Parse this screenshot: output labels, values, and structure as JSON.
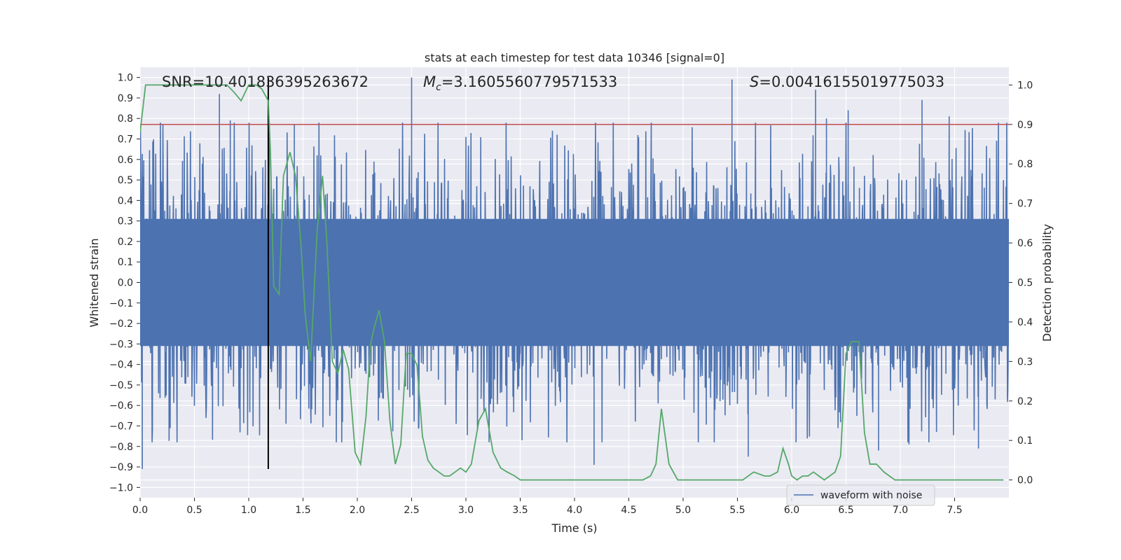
{
  "chart_data": {
    "type": "line",
    "title": "stats at each timestep for test data 10346 [signal=0]",
    "xlabel": "Time (s)",
    "ylabel_left": "Whitened strain",
    "ylabel_right": "Detection probability",
    "xlim": [
      0.0,
      8.0
    ],
    "ylim_left": [
      -1.05,
      1.05
    ],
    "ylim_right": [
      -0.045,
      1.045
    ],
    "x_ticks": [
      "0.0",
      "0.5",
      "1.0",
      "1.5",
      "2.0",
      "2.5",
      "3.0",
      "3.5",
      "4.0",
      "4.5",
      "5.0",
      "5.5",
      "6.0",
      "6.5",
      "7.0",
      "7.5"
    ],
    "y_left_ticks": [
      "-1.0",
      "-0.9",
      "-0.8",
      "-0.7",
      "-0.6",
      "-0.5",
      "-0.4",
      "-0.3",
      "-0.2",
      "-0.1",
      "0.0",
      "0.1",
      "0.2",
      "0.3",
      "0.4",
      "0.5",
      "0.6",
      "0.7",
      "0.8",
      "0.9",
      "1.0"
    ],
    "y_right_ticks": [
      "0.0",
      "0.1",
      "0.2",
      "0.3",
      "0.4",
      "0.5",
      "0.6",
      "0.7",
      "0.8",
      "0.9",
      "1.0"
    ],
    "annotations": {
      "snr": "SNR=10.401836395263672",
      "mc_symbol": "M",
      "mc_subscript": "c",
      "mc_value": "=3.1605560779571533",
      "s_symbol": "S",
      "s_value": "=0.00416155019775033"
    },
    "threshold_line": {
      "y": 0.9,
      "axis": "right",
      "color": "#c44e52"
    },
    "marker_line": {
      "x": 1.18,
      "color": "#000000",
      "y_range": [
        -0.91,
        1.0
      ]
    },
    "legend": {
      "position": "lower-right",
      "entries": [
        "waveform with noise"
      ]
    },
    "grid": true,
    "colors": {
      "background": "#eaeaf2",
      "grid": "#ffffff",
      "waveform": "#4c72b0",
      "probability": "#55a868"
    },
    "series": [
      {
        "name": "waveform with noise",
        "axis": "left",
        "description_values": "Whitened strain noise sampled densely over 0–8 s; typical envelope about ±0.5 with spikes near 1.0 at t≈2.5 s and t≈5.45 s and dips near -0.91 at t≈0.02 s.",
        "envelope": {
          "typical_high": 0.5,
          "typical_low": -0.5
        },
        "spikes": [
          {
            "x": 0.02,
            "y": -0.91
          },
          {
            "x": 0.73,
            "y": 0.92
          },
          {
            "x": 0.83,
            "y": 0.79
          },
          {
            "x": 1.19,
            "y": 0.78
          },
          {
            "x": 1.42,
            "y": 0.77
          },
          {
            "x": 2.5,
            "y": 1.0
          },
          {
            "x": 3.0,
            "y": 0.71
          },
          {
            "x": 4.18,
            "y": -0.89
          },
          {
            "x": 5.45,
            "y": 0.99
          },
          {
            "x": 5.6,
            "y": -0.85
          },
          {
            "x": 6.22,
            "y": 0.94
          },
          {
            "x": 6.32,
            "y": 0.8
          },
          {
            "x": 6.52,
            "y": 0.84
          },
          {
            "x": 6.8,
            "y": -0.82
          },
          {
            "x": 7.08,
            "y": -0.79
          },
          {
            "x": 7.2,
            "y": 0.89
          },
          {
            "x": 7.45,
            "y": 0.81
          },
          {
            "x": 7.72,
            "y": -0.81
          }
        ]
      },
      {
        "name": "",
        "axis": "right",
        "x": [
          0.0,
          0.05,
          0.1,
          0.2,
          0.3,
          0.4,
          0.5,
          0.6,
          0.7,
          0.8,
          0.87,
          0.93,
          1.0,
          1.07,
          1.12,
          1.18,
          1.2,
          1.23,
          1.28,
          1.32,
          1.38,
          1.43,
          1.48,
          1.52,
          1.57,
          1.63,
          1.68,
          1.72,
          1.77,
          1.82,
          1.87,
          1.92,
          1.98,
          2.03,
          2.08,
          2.12,
          2.15,
          2.2,
          2.25,
          2.3,
          2.35,
          2.4,
          2.45,
          2.5,
          2.55,
          2.6,
          2.65,
          2.7,
          2.75,
          2.8,
          2.85,
          2.9,
          2.95,
          3.0,
          3.05,
          3.12,
          3.18,
          3.25,
          3.32,
          3.38,
          3.45,
          3.5,
          3.6,
          3.8,
          4.0,
          4.2,
          4.4,
          4.55,
          4.63,
          4.7,
          4.75,
          4.8,
          4.87,
          4.95,
          5.0,
          5.2,
          5.4,
          5.55,
          5.65,
          5.75,
          5.8,
          5.87,
          5.92,
          5.97,
          6.0,
          6.05,
          6.1,
          6.15,
          6.2,
          6.25,
          6.3,
          6.35,
          6.4,
          6.45,
          6.5,
          6.55,
          6.62,
          6.67,
          6.72,
          6.78,
          6.85,
          6.9,
          6.95,
          7.0,
          7.2,
          7.5,
          7.8,
          7.95
        ],
        "values": [
          0.88,
          1.0,
          1.0,
          1.0,
          1.0,
          1.0,
          1.0,
          1.0,
          1.0,
          1.0,
          0.98,
          0.96,
          1.0,
          1.0,
          0.99,
          0.96,
          0.83,
          0.49,
          0.47,
          0.77,
          0.83,
          0.77,
          0.6,
          0.42,
          0.3,
          0.63,
          0.77,
          0.6,
          0.3,
          0.27,
          0.33,
          0.28,
          0.07,
          0.04,
          0.16,
          0.34,
          0.38,
          0.43,
          0.35,
          0.15,
          0.04,
          0.09,
          0.32,
          0.32,
          0.29,
          0.11,
          0.05,
          0.03,
          0.02,
          0.01,
          0.01,
          0.02,
          0.03,
          0.02,
          0.04,
          0.15,
          0.18,
          0.07,
          0.03,
          0.02,
          0.01,
          0.0,
          0.0,
          0.0,
          0.0,
          0.0,
          0.0,
          0.0,
          0.0,
          0.01,
          0.04,
          0.18,
          0.04,
          0.0,
          0.0,
          0.0,
          0.0,
          0.0,
          0.02,
          0.01,
          0.01,
          0.02,
          0.08,
          0.04,
          0.01,
          0.0,
          0.01,
          0.01,
          0.02,
          0.01,
          0.0,
          0.01,
          0.02,
          0.06,
          0.32,
          0.35,
          0.35,
          0.12,
          0.04,
          0.04,
          0.02,
          0.01,
          0.0,
          0.0,
          0.0,
          0.0,
          0.0,
          0.0
        ]
      }
    ]
  }
}
